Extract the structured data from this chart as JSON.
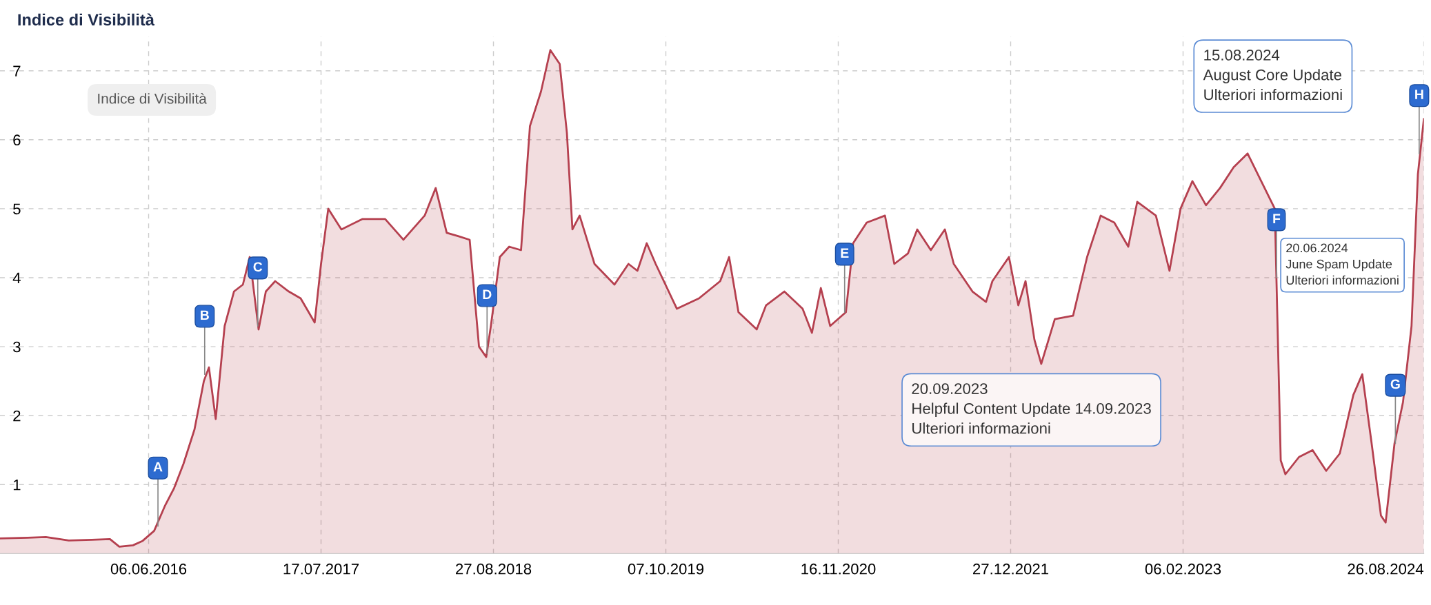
{
  "chart_data": {
    "type": "area",
    "title": "Indice di Visibilità",
    "x": [
      "2015-06-22",
      "2015-08-26",
      "2015-10-08",
      "2015-12-01",
      "2016-01-24",
      "2016-03-07",
      "2016-03-29",
      "2016-04-30",
      "2016-05-22",
      "2016-06-19",
      "2016-07-15",
      "2016-08-05",
      "2016-08-27",
      "2016-09-22",
      "2016-10-14",
      "2016-10-26",
      "2016-11-11",
      "2016-12-02",
      "2016-12-24",
      "2017-01-14",
      "2017-01-30",
      "2017-02-20",
      "2017-03-09",
      "2017-03-31",
      "2017-05-02",
      "2017-05-30",
      "2017-07-02",
      "2017-07-17",
      "2017-08-03",
      "2017-09-03",
      "2017-10-22",
      "2017-12-15",
      "2018-01-27",
      "2018-03-18",
      "2018-04-13",
      "2018-05-09",
      "2018-06-06",
      "2018-07-02",
      "2018-07-24",
      "2018-08-10",
      "2018-08-21",
      "2018-09-11",
      "2018-10-03",
      "2018-10-31",
      "2018-11-21",
      "2018-12-17",
      "2019-01-08",
      "2019-01-30",
      "2019-02-16",
      "2019-03-01",
      "2019-03-18",
      "2019-04-22",
      "2019-06-08",
      "2019-07-11",
      "2019-08-01",
      "2019-08-23",
      "2019-09-13",
      "2019-11-02",
      "2019-12-24",
      "2020-02-12",
      "2020-03-04",
      "2020-03-26",
      "2020-05-08",
      "2020-05-30",
      "2020-07-12",
      "2020-08-24",
      "2020-09-15",
      "2020-10-06",
      "2020-10-28",
      "2020-12-04",
      "2020-12-21",
      "2021-01-22",
      "2021-03-06",
      "2021-03-28",
      "2021-04-29",
      "2021-05-21",
      "2021-06-22",
      "2021-07-25",
      "2021-08-15",
      "2021-09-28",
      "2021-10-30",
      "2021-11-14",
      "2021-12-23",
      "2022-01-14",
      "2022-01-31",
      "2022-02-21",
      "2022-03-09",
      "2022-04-10",
      "2022-05-23",
      "2022-06-25",
      "2022-07-27",
      "2022-08-28",
      "2022-09-30",
      "2022-10-21",
      "2022-12-04",
      "2023-01-05",
      "2023-01-31",
      "2023-02-28",
      "2023-04-01",
      "2023-05-04",
      "2023-06-05",
      "2023-07-08",
      "2023-08-09",
      "2023-09-10",
      "2023-09-24",
      "2023-10-05",
      "2023-11-06",
      "2023-12-08",
      "2024-01-09",
      "2024-02-10",
      "2024-03-13",
      "2024-04-03",
      "2024-04-25",
      "2024-05-17",
      "2024-05-28",
      "2024-06-18",
      "2024-07-08",
      "2024-07-28",
      "2024-08-12",
      "2024-08-26"
    ],
    "series": [
      {
        "color": "#b5404f",
        "values": [
          0.22,
          0.23,
          0.24,
          0.19,
          0.2,
          0.21,
          0.1,
          0.12,
          0.18,
          0.33,
          0.7,
          0.95,
          1.3,
          1.8,
          2.5,
          2.7,
          1.95,
          3.3,
          3.8,
          3.9,
          4.3,
          3.25,
          3.8,
          3.95,
          3.8,
          3.7,
          3.35,
          4.2,
          5.0,
          4.7,
          4.85,
          4.85,
          4.55,
          4.9,
          5.3,
          4.65,
          4.6,
          4.55,
          3.0,
          2.85,
          3.3,
          4.3,
          4.45,
          4.4,
          6.2,
          6.7,
          7.3,
          7.1,
          6.1,
          4.7,
          4.9,
          4.2,
          3.9,
          4.2,
          4.1,
          4.5,
          4.2,
          3.55,
          3.7,
          3.95,
          4.3,
          3.5,
          3.25,
          3.6,
          3.8,
          3.55,
          3.2,
          3.85,
          3.3,
          3.5,
          4.5,
          4.8,
          4.9,
          4.2,
          4.35,
          4.7,
          4.4,
          4.7,
          4.2,
          3.8,
          3.65,
          3.95,
          4.3,
          3.6,
          3.95,
          3.1,
          2.75,
          3.4,
          3.45,
          4.3,
          4.9,
          4.8,
          4.45,
          5.1,
          4.9,
          4.1,
          5.0,
          5.4,
          5.05,
          5.3,
          5.6,
          5.8,
          5.4,
          5.0,
          1.35,
          1.15,
          1.4,
          1.5,
          1.2,
          1.45,
          2.3,
          2.6,
          1.6,
          0.55,
          0.45,
          1.6,
          2.2,
          3.3,
          5.5,
          6.3
        ]
      }
    ],
    "xlim": [
      "2015-06-22",
      "2024-08-26"
    ],
    "xticks": [
      {
        "value": "2016-06-06",
        "label": "06.06.2016"
      },
      {
        "value": "2017-07-17",
        "label": "17.07.2017"
      },
      {
        "value": "2018-08-27",
        "label": "27.08.2018"
      },
      {
        "value": "2019-10-07",
        "label": "07.10.2019"
      },
      {
        "value": "2020-11-16",
        "label": "16.11.2020"
      },
      {
        "value": "2021-12-27",
        "label": "27.12.2021"
      },
      {
        "value": "2023-02-06",
        "label": "06.02.2023"
      },
      {
        "value": "2024-08-26",
        "label": "26.08.2024"
      }
    ],
    "ylim": [
      0,
      7.5
    ],
    "yticks": [
      1,
      2,
      3,
      4,
      5,
      6,
      7
    ],
    "grid": true,
    "line_style": "solid",
    "annotations": [
      "Indice di Visibilità",
      "20.09.2023\nHelpful Content Update 14.09.2023\nUlteriori informazioni",
      "15.08.2024\nAugust Core Update\nUlteriori informazioni",
      "20.06.2024\nJune Spam Update\nUlteriori informazioni",
      {
        "text": "A",
        "x": "2016-06-28",
        "y": 0.4
      },
      {
        "text": "B",
        "x": "2016-10-16",
        "y": 2.6
      },
      {
        "text": "C",
        "x": "2017-02-18",
        "y": 3.3
      },
      {
        "text": "D",
        "x": "2018-08-12",
        "y": 2.9
      },
      {
        "text": "E",
        "x": "2020-12-01",
        "y": 3.5
      },
      {
        "text": "F",
        "x": "2023-09-14",
        "y": 4.0
      },
      {
        "text": "G",
        "x": "2024-06-20",
        "y": 1.6
      },
      {
        "text": "H",
        "x": "2024-08-15",
        "y": 5.8
      }
    ]
  }
}
